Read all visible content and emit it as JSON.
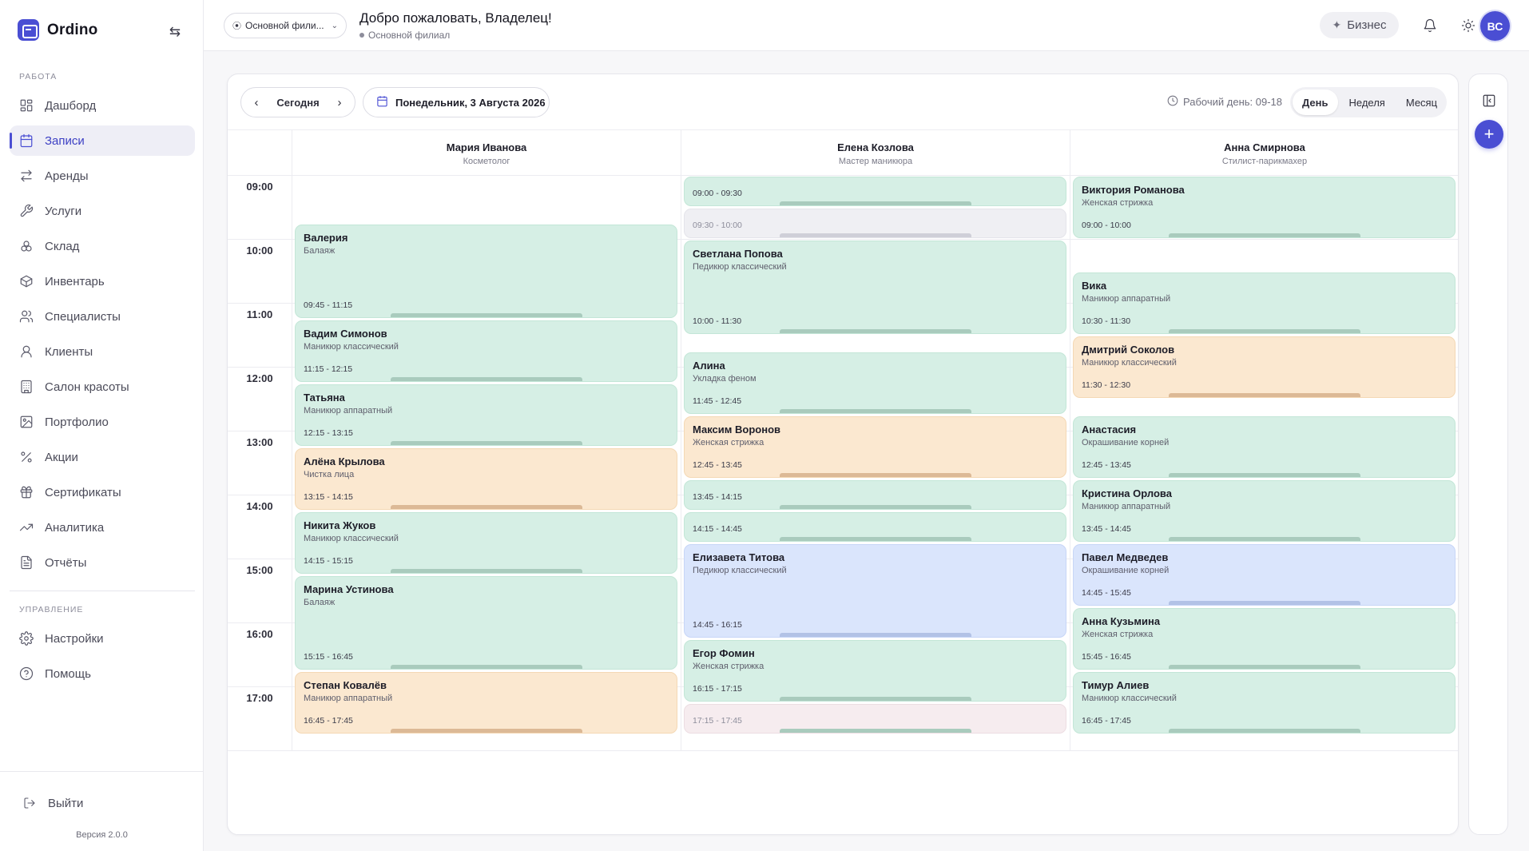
{
  "app": {
    "name": "Ordino",
    "version": "Версия 2.0.0",
    "logout": "Выйти"
  },
  "sidebar": {
    "work_label": "РАБОТА",
    "manage_label": "УПРАВЛЕНИЕ",
    "items": [
      {
        "label": "Дашборд",
        "icon": "dashboard-icon",
        "active": false
      },
      {
        "label": "Записи",
        "icon": "calendar-icon",
        "active": true
      },
      {
        "label": "Аренды",
        "icon": "swap-icon",
        "active": false
      },
      {
        "label": "Услуги",
        "icon": "wrench-icon",
        "active": false
      },
      {
        "label": "Склад",
        "icon": "boxes-icon",
        "active": false
      },
      {
        "label": "Инвентарь",
        "icon": "package-icon",
        "active": false
      },
      {
        "label": "Специалисты",
        "icon": "users-icon",
        "active": false
      },
      {
        "label": "Клиенты",
        "icon": "user-icon",
        "active": false
      },
      {
        "label": "Салон красоты",
        "icon": "building-icon",
        "active": false
      },
      {
        "label": "Портфолио",
        "icon": "image-icon",
        "active": false
      },
      {
        "label": "Акции",
        "icon": "percent-icon",
        "active": false
      },
      {
        "label": "Сертификаты",
        "icon": "gift-icon",
        "active": false
      },
      {
        "label": "Аналитика",
        "icon": "trend-icon",
        "active": false
      },
      {
        "label": "Отчёты",
        "icon": "report-icon",
        "active": false
      }
    ],
    "manage_items": [
      {
        "label": "Настройки",
        "icon": "gear-icon"
      },
      {
        "label": "Помощь",
        "icon": "help-icon"
      }
    ]
  },
  "header": {
    "branch": "Основной фили...",
    "welcome": "Добро пожаловать, Владелец!",
    "branch_name": "Основной филиал",
    "plan": "Бизнес",
    "avatar": "ВС"
  },
  "toolbar": {
    "today": "Сегодня",
    "date": "Понедельник, 3 Августа 2026",
    "workday": "Рабочий день: 09-18",
    "views": [
      {
        "label": "День",
        "active": true
      },
      {
        "label": "Неделя",
        "active": false
      },
      {
        "label": "Месяц",
        "active": false
      }
    ]
  },
  "hours": [
    "09:00",
    "10:00",
    "11:00",
    "12:00",
    "13:00",
    "14:00",
    "15:00",
    "16:00",
    "17:00"
  ],
  "staff": [
    {
      "name": "Мария Иванова",
      "role": "Косметолог",
      "appointments": [
        {
          "client": "Валерия",
          "service": "Балаяж",
          "time": "09:45 - 11:15",
          "color": "green",
          "start": 9.75,
          "end": 11.25
        },
        {
          "client": "Вадим Симонов",
          "service": "Маникюр классический",
          "time": "11:15 - 12:15",
          "color": "green",
          "start": 11.25,
          "end": 12.25
        },
        {
          "client": "Татьяна",
          "service": "Маникюр аппаратный",
          "time": "12:15 - 13:15",
          "color": "green",
          "start": 12.25,
          "end": 13.25
        },
        {
          "client": "Алёна Крылова",
          "service": "Чистка лица",
          "time": "13:15 - 14:15",
          "color": "orange",
          "start": 13.25,
          "end": 14.25
        },
        {
          "client": "Никита Жуков",
          "service": "Маникюр классический",
          "time": "14:15 - 15:15",
          "color": "green",
          "start": 14.25,
          "end": 15.25
        },
        {
          "client": "Марина Устинова",
          "service": "Балаяж",
          "time": "15:15 - 16:45",
          "color": "green",
          "start": 15.25,
          "end": 16.75
        },
        {
          "client": "Степан Ковалёв",
          "service": "Маникюр аппаратный",
          "time": "16:45 - 17:45",
          "color": "orange",
          "start": 16.75,
          "end": 17.75
        }
      ]
    },
    {
      "name": "Елена Козлова",
      "role": "Мастер маникюра",
      "appointments": [
        {
          "client": "",
          "service": "",
          "time": "09:00 - 09:30",
          "color": "green",
          "start": 9.0,
          "end": 9.5
        },
        {
          "client": "",
          "service": "",
          "time": "09:30 - 10:00",
          "color": "gray",
          "start": 9.5,
          "end": 10.0
        },
        {
          "client": "Светлана Попова",
          "service": "Педикюр классический",
          "time": "10:00 - 11:30",
          "color": "green",
          "start": 10.0,
          "end": 11.5
        },
        {
          "client": "Алина",
          "service": "Укладка феном",
          "time": "11:45 - 12:45",
          "color": "green",
          "start": 11.75,
          "end": 12.75
        },
        {
          "client": "Максим Воронов",
          "service": "Женская стрижка",
          "time": "12:45 - 13:45",
          "color": "orange",
          "start": 12.75,
          "end": 13.75
        },
        {
          "client": "",
          "service": "",
          "time": "13:45 - 14:15",
          "color": "green",
          "start": 13.75,
          "end": 14.25
        },
        {
          "client": "",
          "service": "",
          "time": "14:15 - 14:45",
          "color": "green",
          "start": 14.25,
          "end": 14.75
        },
        {
          "client": "Елизавета Титова",
          "service": "Педикюр классический",
          "time": "14:45 - 16:15",
          "color": "blue",
          "start": 14.75,
          "end": 16.25
        },
        {
          "client": "Егор Фомин",
          "service": "Женская стрижка",
          "time": "16:15 - 17:15",
          "color": "green",
          "start": 16.25,
          "end": 17.25
        },
        {
          "client": "",
          "service": "",
          "time": "17:15 - 17:45",
          "color": "pink",
          "start": 17.25,
          "end": 17.75
        }
      ]
    },
    {
      "name": "Анна Смирнова",
      "role": "Стилист-парикмахер",
      "appointments": [
        {
          "client": "Виктория Романова",
          "service": "Женская стрижка",
          "time": "09:00 - 10:00",
          "color": "green",
          "start": 9.0,
          "end": 10.0
        },
        {
          "client": "Вика",
          "service": "Маникюр аппаратный",
          "time": "10:30 - 11:30",
          "color": "green",
          "start": 10.5,
          "end": 11.5
        },
        {
          "client": "Дмитрий Соколов",
          "service": "Маникюр классический",
          "time": "11:30 - 12:30",
          "color": "orange",
          "start": 11.5,
          "end": 12.5
        },
        {
          "client": "Анастасия",
          "service": "Окрашивание корней",
          "time": "12:45 - 13:45",
          "color": "green",
          "start": 12.75,
          "end": 13.75
        },
        {
          "client": "Кристина Орлова",
          "service": "Маникюр аппаратный",
          "time": "13:45 - 14:45",
          "color": "green",
          "start": 13.75,
          "end": 14.75
        },
        {
          "client": "Павел Медведев",
          "service": "Окрашивание корней",
          "time": "14:45 - 15:45",
          "color": "blue",
          "start": 14.75,
          "end": 15.75
        },
        {
          "client": "Анна Кузьмина",
          "service": "Женская стрижка",
          "time": "15:45 - 16:45",
          "color": "green",
          "start": 15.75,
          "end": 16.75
        },
        {
          "client": "Тимур Алиев",
          "service": "Маникюр классический",
          "time": "16:45 - 17:45",
          "color": "green",
          "start": 16.75,
          "end": 17.75
        }
      ]
    }
  ]
}
